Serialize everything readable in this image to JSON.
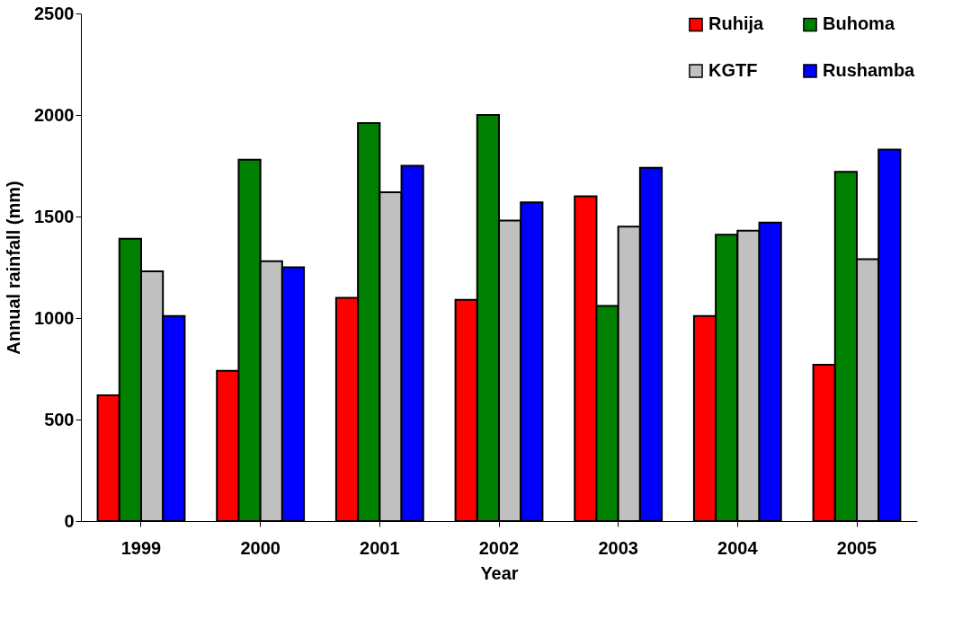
{
  "chart_data": {
    "type": "bar",
    "xlabel": "Year",
    "ylabel": "Annual rainfall (mm)",
    "categories": [
      "1999",
      "2000",
      "2001",
      "2002",
      "2003",
      "2004",
      "2005"
    ],
    "series": [
      {
        "name": "Ruhija",
        "color": "#ff0000",
        "values": [
          620,
          740,
          1100,
          1090,
          1600,
          1010,
          770
        ]
      },
      {
        "name": "Buhoma",
        "color": "#008000",
        "values": [
          1390,
          1780,
          1960,
          2000,
          1060,
          1410,
          1720
        ]
      },
      {
        "name": "KGTF",
        "color": "#c0c0c0",
        "values": [
          1230,
          1280,
          1620,
          1480,
          1450,
          1430,
          1290
        ]
      },
      {
        "name": "Rushamba",
        "color": "#0000ff",
        "values": [
          1010,
          1250,
          1750,
          1570,
          1740,
          1470,
          1830
        ]
      }
    ],
    "ylim": [
      0,
      2500
    ],
    "yticks": [
      0,
      500,
      1000,
      1500,
      2000,
      2500
    ],
    "grid": false,
    "legend": "top right"
  }
}
